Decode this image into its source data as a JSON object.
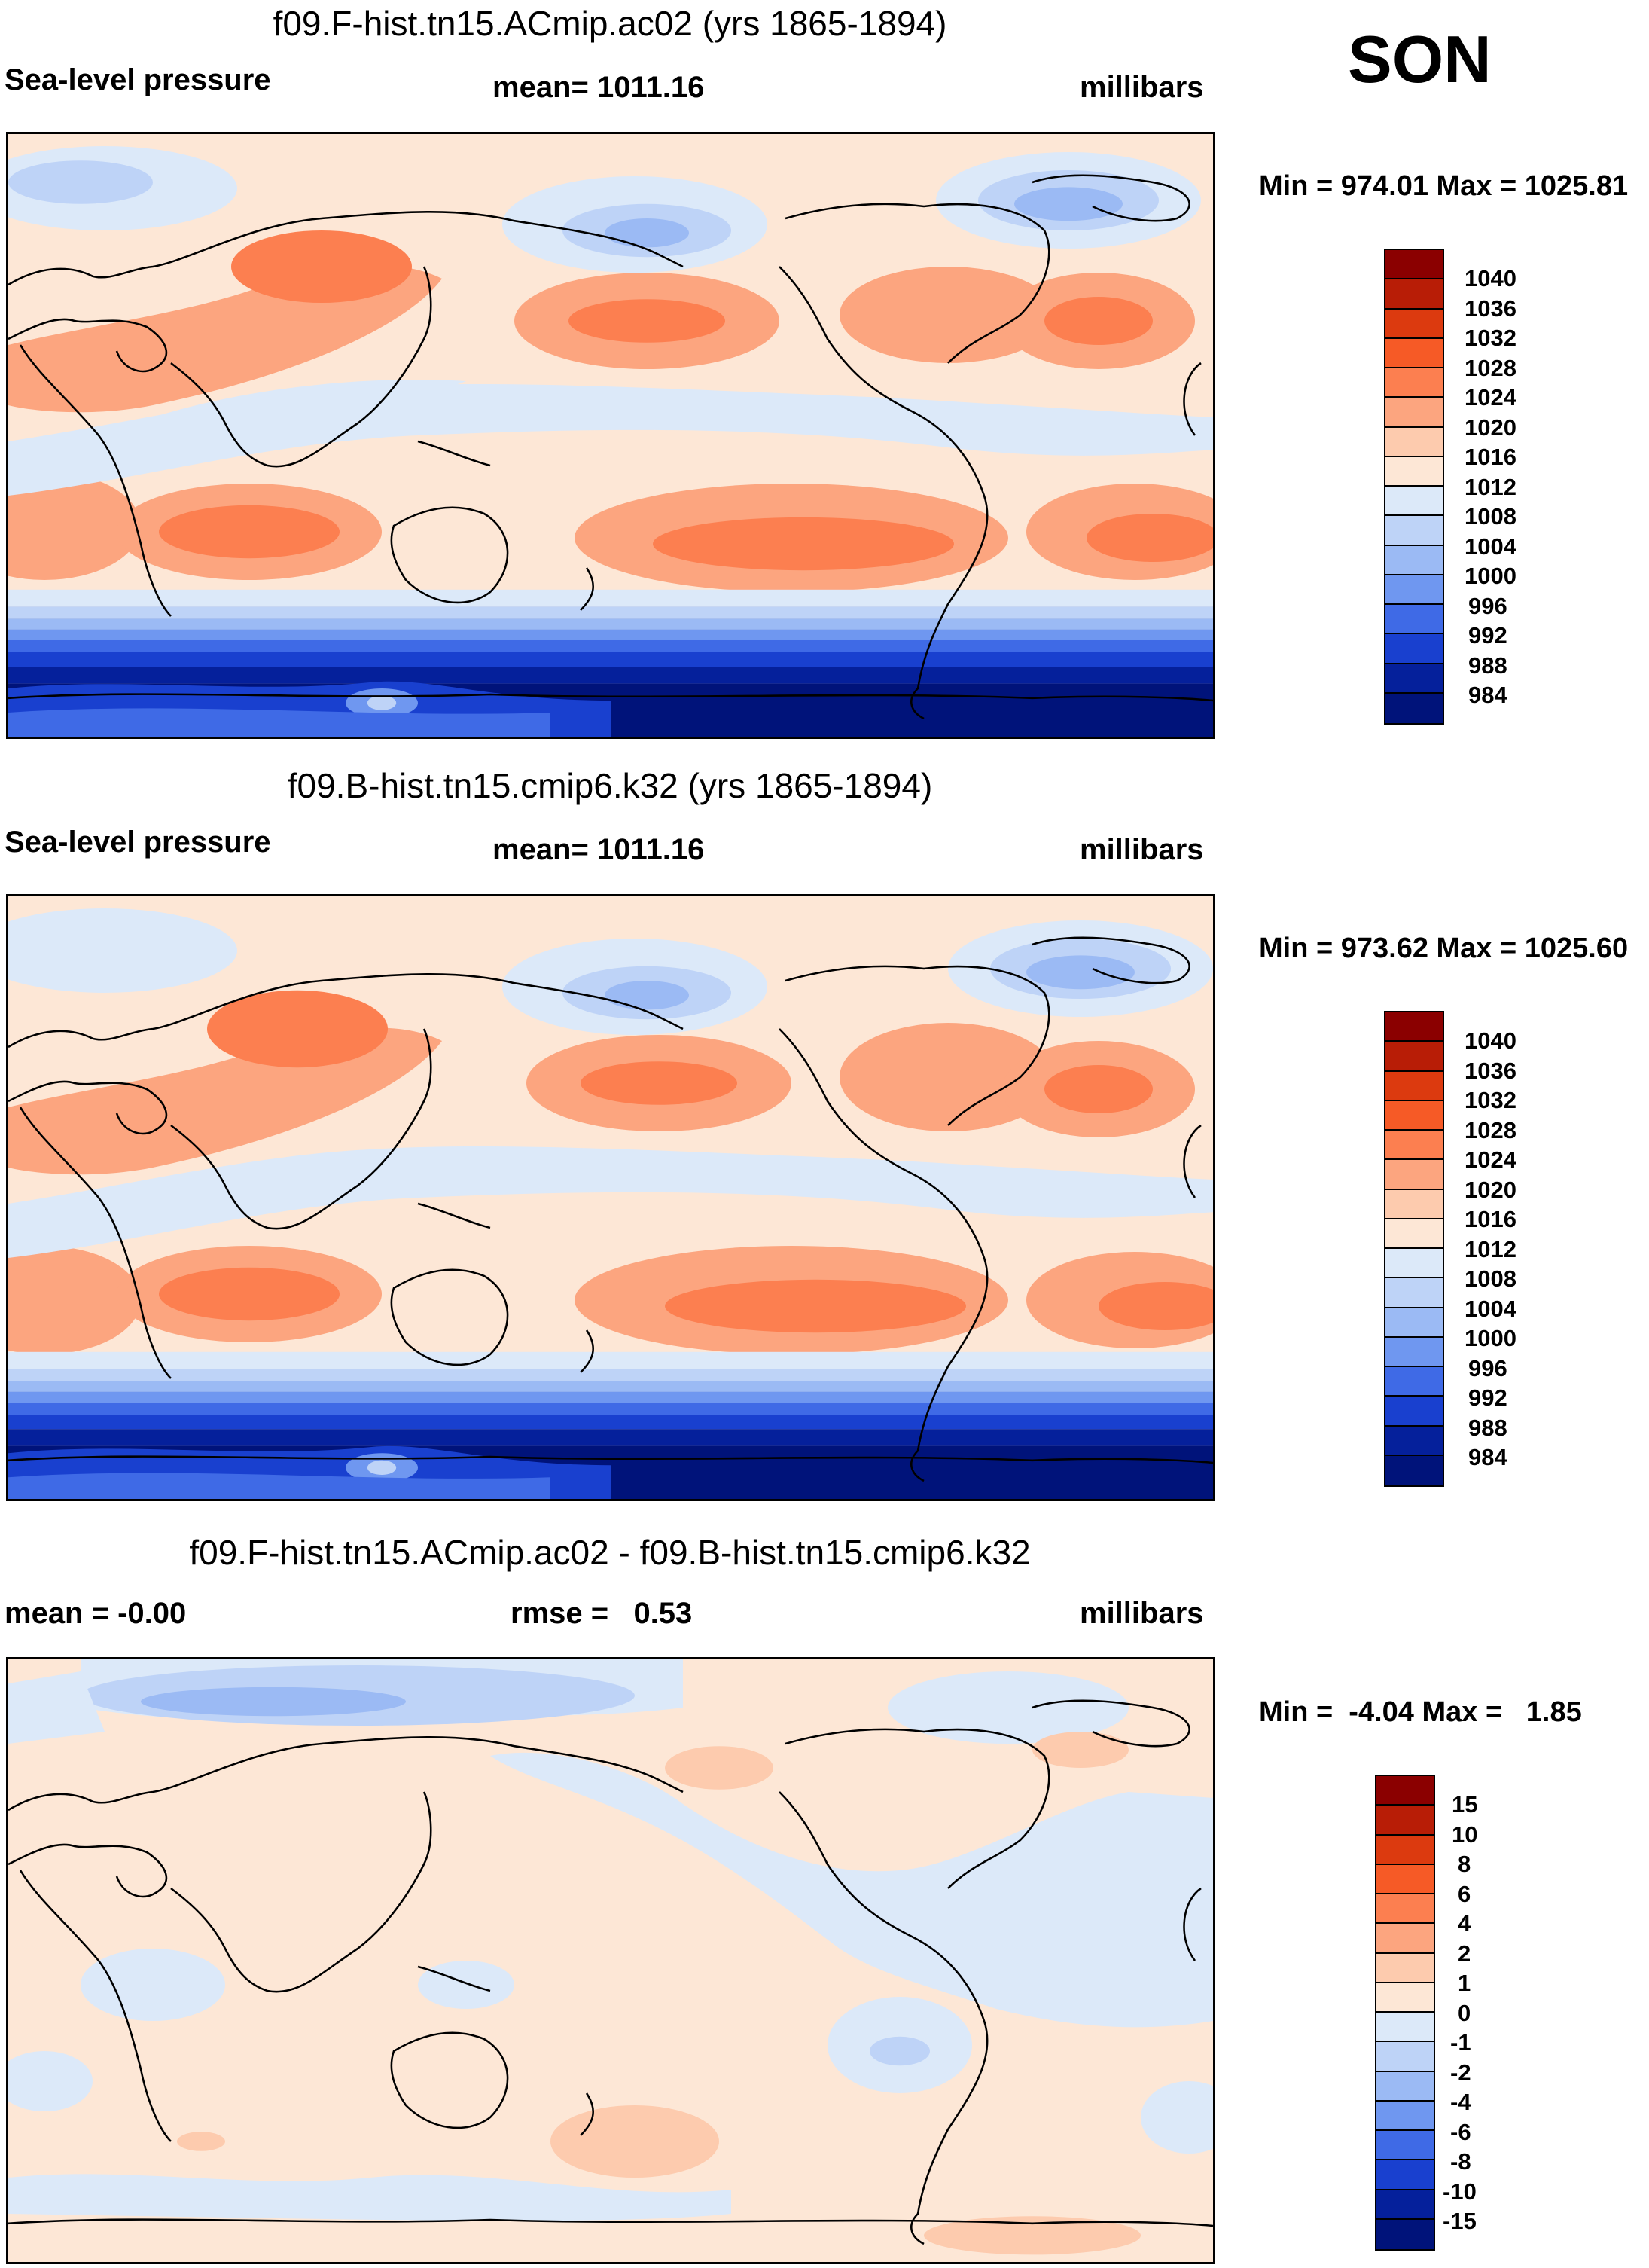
{
  "season": "SON",
  "units": "millibars",
  "panels": [
    {
      "title": "f09.F-hist.tn15.ACmip.ac02 (yrs 1865-1894)",
      "left_label": "Sea-level pressure",
      "center_label": "mean= 1011.16",
      "right_label": "millibars",
      "minmax": "Min = 974.01 Max = 1025.81"
    },
    {
      "title": "f09.B-hist.tn15.cmip6.k32 (yrs 1865-1894)",
      "left_label": "Sea-level pressure",
      "center_label": "mean= 1011.16",
      "right_label": "millibars",
      "minmax": "Min = 973.62 Max = 1025.60"
    },
    {
      "title": "f09.F-hist.tn15.ACmip.ac02 - f09.B-hist.tn15.cmip6.k32",
      "left_label": "mean =  -0.00",
      "center_label": "rmse =   0.53",
      "right_label": "millibars",
      "minmax": "Min =  -4.04 Max =   1.85"
    }
  ],
  "colorbar_slp": {
    "levels": [
      "1040",
      "1036",
      "1032",
      "1028",
      "1024",
      "1020",
      "1016",
      "1012",
      "1008",
      "1004",
      "1000",
      "996",
      "992",
      "988",
      "984"
    ],
    "colors": [
      "#8b0000",
      "#b81d06",
      "#dc3a0f",
      "#f65a26",
      "#fc7f50",
      "#fca57f",
      "#fdcbae",
      "#fde7d6",
      "#dce9f9",
      "#bed3f7",
      "#9bbaf4",
      "#6f97f0",
      "#3f6ae6",
      "#1940cf",
      "#05209b",
      "#00137a"
    ]
  },
  "colorbar_diff": {
    "levels": [
      "15",
      "10",
      "8",
      "6",
      "4",
      "2",
      "1",
      "0",
      "-1",
      "-2",
      "-4",
      "-6",
      "-8",
      "-10",
      "-15"
    ],
    "colors": [
      "#8b0000",
      "#b81d06",
      "#dc3a0f",
      "#f65a26",
      "#fc7f50",
      "#fca57f",
      "#fdcbae",
      "#fde7d6",
      "#dce9f9",
      "#bed3f7",
      "#9bbaf4",
      "#6f97f0",
      "#3f6ae6",
      "#1940cf",
      "#05209b",
      "#00137a"
    ]
  }
}
